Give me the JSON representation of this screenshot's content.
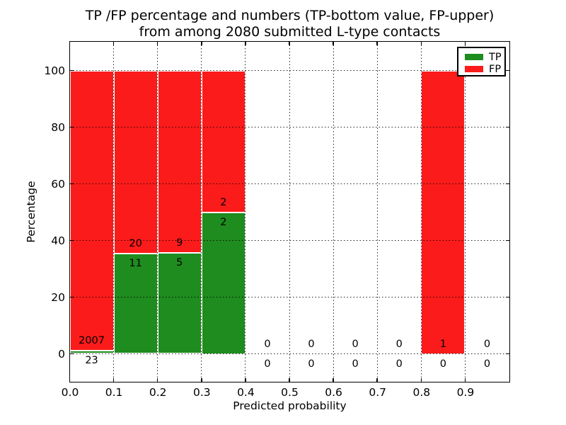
{
  "figure": {
    "title_line1": "TP /FP percentage and numbers (TP-bottom value, FP-upper)",
    "title_line2": "from among 2080 submitted L-type contacts",
    "xlabel": "Predicted probability",
    "ylabel": "Percentage"
  },
  "chart_data": {
    "type": "bar",
    "stacked": true,
    "title": "TP /FP percentage and numbers (TP-bottom value, FP-upper) from among 2080 submitted L-type contacts",
    "xlabel": "Predicted probability",
    "ylabel": "Percentage",
    "total_submitted_contacts": 2080,
    "grid": "dotted",
    "xlim": [
      0.0,
      1.0
    ],
    "ylim": [
      -9.75,
      110.25
    ],
    "colors": {
      "tp": "#1e8c1e",
      "fp": "#fb1b1b"
    },
    "x_ticks": [
      {
        "value": 0.0,
        "label": "0.0"
      },
      {
        "value": 0.1,
        "label": "0.1"
      },
      {
        "value": 0.2,
        "label": "0.2"
      },
      {
        "value": 0.3,
        "label": "0.3"
      },
      {
        "value": 0.4,
        "label": "0.4"
      },
      {
        "value": 0.5,
        "label": "0.5"
      },
      {
        "value": 0.6,
        "label": "0.6"
      },
      {
        "value": 0.7,
        "label": "0.7"
      },
      {
        "value": 0.8,
        "label": "0.8"
      },
      {
        "value": 0.9,
        "label": "0.9"
      }
    ],
    "y_ticks": [
      {
        "value": 0,
        "label": "0"
      },
      {
        "value": 20,
        "label": "20"
      },
      {
        "value": 40,
        "label": "40"
      },
      {
        "value": 60,
        "label": "60"
      },
      {
        "value": 80,
        "label": "80"
      },
      {
        "value": 100,
        "label": "100"
      }
    ],
    "legend": {
      "position": "upper right",
      "entries": [
        {
          "name": "TP",
          "color": "#1e8c1e"
        },
        {
          "name": "FP",
          "color": "#fb1b1b"
        }
      ]
    },
    "bins": [
      {
        "range_start": 0.0,
        "range_end": 0.1,
        "tp_count": 23,
        "fp_count": 2007,
        "tp_pct": 1.133,
        "fp_pct": 98.867
      },
      {
        "range_start": 0.1,
        "range_end": 0.2,
        "tp_count": 11,
        "fp_count": 20,
        "tp_pct": 35.484,
        "fp_pct": 64.516
      },
      {
        "range_start": 0.2,
        "range_end": 0.3,
        "tp_count": 5,
        "fp_count": 9,
        "tp_pct": 35.714,
        "fp_pct": 64.286
      },
      {
        "range_start": 0.3,
        "range_end": 0.4,
        "tp_count": 2,
        "fp_count": 2,
        "tp_pct": 50.0,
        "fp_pct": 50.0
      },
      {
        "range_start": 0.4,
        "range_end": 0.5,
        "tp_count": 0,
        "fp_count": 0,
        "tp_pct": 0,
        "fp_pct": 0
      },
      {
        "range_start": 0.5,
        "range_end": 0.6,
        "tp_count": 0,
        "fp_count": 0,
        "tp_pct": 0,
        "fp_pct": 0
      },
      {
        "range_start": 0.6,
        "range_end": 0.7,
        "tp_count": 0,
        "fp_count": 0,
        "tp_pct": 0,
        "fp_pct": 0
      },
      {
        "range_start": 0.7,
        "range_end": 0.8,
        "tp_count": 0,
        "fp_count": 0,
        "tp_pct": 0,
        "fp_pct": 0
      },
      {
        "range_start": 0.8,
        "range_end": 0.9,
        "tp_count": 0,
        "fp_count": 1,
        "tp_pct": 0,
        "fp_pct": 100.0
      },
      {
        "range_start": 0.9,
        "range_end": 1.0,
        "tp_count": 0,
        "fp_count": 0,
        "tp_pct": 0,
        "fp_pct": 0
      }
    ]
  }
}
